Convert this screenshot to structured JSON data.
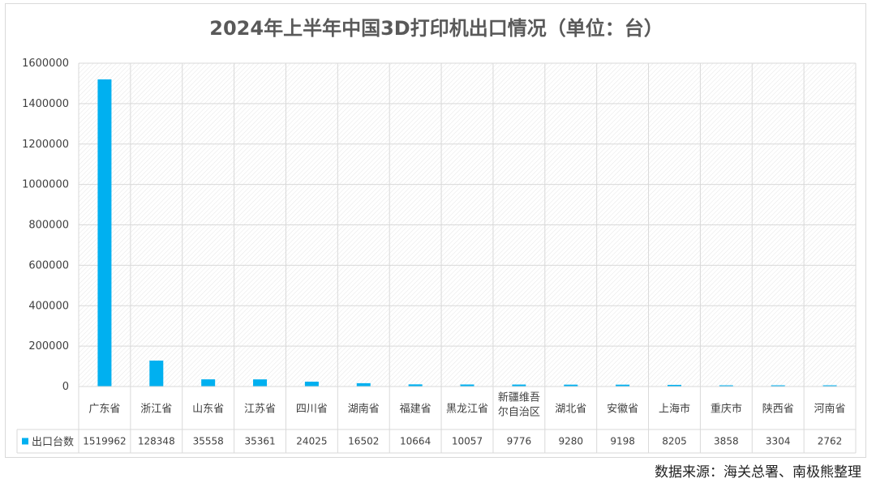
{
  "chart_data": {
    "type": "bar",
    "title": "2024年上半年中国3D打印机出口情况（单位：台）",
    "categories": [
      "广东省",
      "浙江省",
      "山东省",
      "江苏省",
      "四川省",
      "湖南省",
      "福建省",
      "黑龙江省",
      "新疆维吾尔自治区",
      "湖北省",
      "安徽省",
      "上海市",
      "重庆市",
      "陕西省",
      "河南省"
    ],
    "series": [
      {
        "name": "出口台数",
        "values": [
          1519962,
          128348,
          35558,
          35361,
          24025,
          16502,
          10664,
          10057,
          9776,
          9280,
          9198,
          8205,
          3858,
          3304,
          2762
        ],
        "color": "#00b0f0"
      }
    ],
    "yticks": [
      "0",
      "200000",
      "400000",
      "600000",
      "800000",
      "1000000",
      "1200000",
      "1400000",
      "1600000"
    ],
    "ylim": [
      0,
      1600000
    ],
    "grid": true,
    "legend": "data-table"
  },
  "source": "数据来源：海关总署、南极熊整理"
}
